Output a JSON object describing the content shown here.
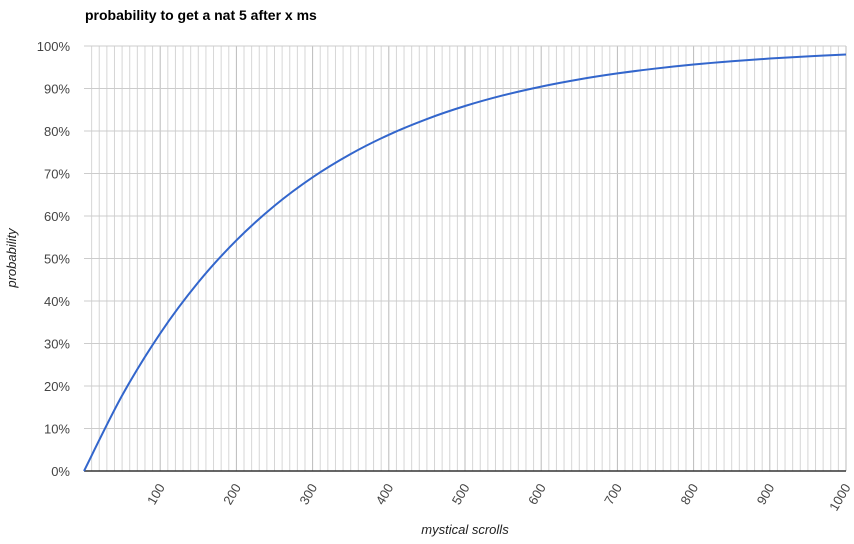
{
  "chart_data": {
    "type": "line",
    "title": "probability to get a nat 5 after x ms",
    "xlabel": "mystical scrolls",
    "ylabel": "probability",
    "xlim": [
      0,
      1000
    ],
    "ylim": [
      0,
      1
    ],
    "x_ticks": [
      100,
      200,
      300,
      400,
      500,
      600,
      700,
      800,
      900,
      1000
    ],
    "x_tick_labels": [
      "100",
      "200",
      "300",
      "400",
      "500",
      "600",
      "700",
      "800",
      "900",
      "1000"
    ],
    "x_minor_grid_step": 10,
    "y_ticks": [
      0,
      0.1,
      0.2,
      0.3,
      0.4,
      0.5,
      0.6,
      0.7,
      0.8,
      0.9,
      1
    ],
    "y_tick_labels": [
      "0%",
      "10%",
      "20%",
      "30%",
      "40%",
      "50%",
      "60%",
      "70%",
      "80%",
      "90%",
      "100%"
    ],
    "grid": true,
    "legend": "none",
    "series": [
      {
        "color": "#3366cc",
        "x": [
          0,
          50,
          100,
          150,
          200,
          250,
          300,
          350,
          400,
          450,
          500,
          550,
          600,
          650,
          700,
          750,
          800,
          850,
          900,
          950,
          1000
        ],
        "y": [
          0,
          0.1776,
          0.3238,
          0.4441,
          0.5428,
          0.6241,
          0.691,
          0.7459,
          0.7911,
          0.8282,
          0.8588,
          0.8839,
          0.9045,
          0.9215,
          0.9355,
          0.9469,
          0.9564,
          0.9641,
          0.9705,
          0.9757,
          0.98
        ]
      }
    ]
  }
}
